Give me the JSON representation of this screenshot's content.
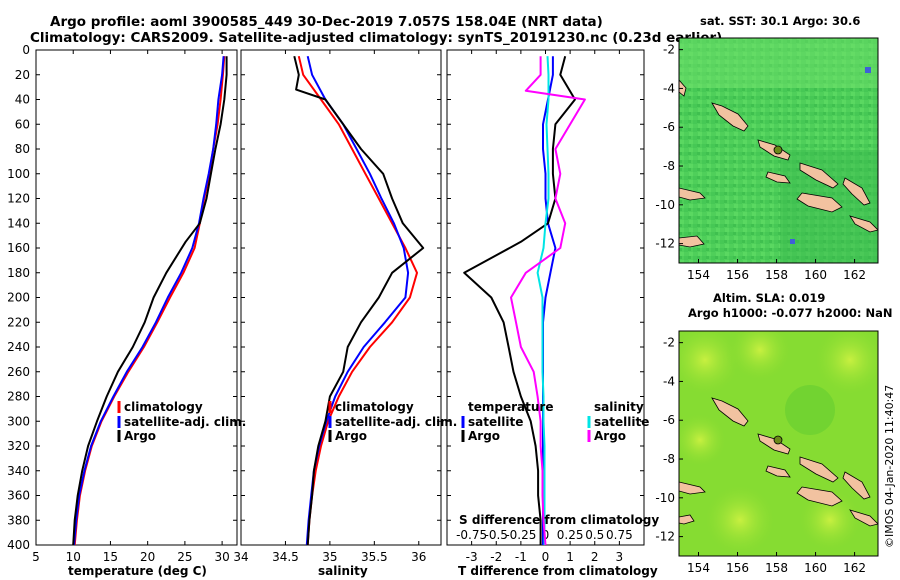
{
  "title_line1": "Argo profile: aoml 3900585_449 30-Dec-2019 7.057S 158.04E (NRT data)",
  "title_line2": "Climatology: CARS2009. Satellite-adjusted climatology: synTS_20191230.nc (0.23d earlier)",
  "credit": "©IMOS 04-Jan-2020 11:40:47",
  "colors": {
    "climatology": "#ff0000",
    "satellite": "#0000ff",
    "argo": "#000000",
    "sat_salinity": "#00e5e5",
    "argo_salinity": "#ff00ff"
  },
  "chart_data": [
    {
      "type": "line",
      "id": "temperature",
      "xlabel": "temperature (deg C)",
      "xlim": [
        5,
        32
      ],
      "ylim": [
        0,
        400
      ],
      "y_reversed": true,
      "x_ticks": [
        "5",
        "10",
        "15",
        "20",
        "25",
        "30"
      ],
      "y_ticks": [
        "0",
        "20",
        "40",
        "60",
        "80",
        "100",
        "120",
        "140",
        "160",
        "180",
        "200",
        "220",
        "240",
        "260",
        "280",
        "300",
        "320",
        "340",
        "360",
        "380",
        "400"
      ],
      "legend": [
        "climatology",
        "satellite-adj. clim.",
        "Argo"
      ],
      "series": [
        {
          "name": "climatology",
          "color": "#ff0000",
          "x": [
            30.3,
            30.1,
            29.8,
            29.4,
            28.8,
            28.3,
            27.6,
            27.0,
            26.3,
            24.8,
            23.0,
            21.3,
            19.5,
            17.4,
            15.5,
            13.8,
            12.5,
            11.6,
            10.9,
            10.5,
            10.2
          ],
          "y": [
            5,
            20,
            40,
            60,
            80,
            100,
            120,
            140,
            160,
            180,
            200,
            220,
            240,
            260,
            280,
            300,
            320,
            340,
            360,
            380,
            400
          ]
        },
        {
          "name": "satellite-adj. clim.",
          "color": "#0000ff",
          "x": [
            30.2,
            30.0,
            29.5,
            29.2,
            28.8,
            28.2,
            27.5,
            26.9,
            26.0,
            24.5,
            22.7,
            21.1,
            19.3,
            17.2,
            15.4,
            13.7,
            12.4,
            11.5,
            10.8,
            10.4,
            10.1
          ],
          "y": [
            5,
            20,
            40,
            60,
            80,
            100,
            120,
            140,
            160,
            180,
            200,
            220,
            240,
            260,
            280,
            300,
            320,
            340,
            360,
            380,
            400
          ]
        },
        {
          "name": "Argo",
          "color": "#000000",
          "x": [
            30.6,
            30.6,
            30.3,
            29.8,
            29.1,
            28.5,
            27.9,
            27.0,
            25.1,
            22.5,
            20.8,
            19.6,
            18.0,
            16.0,
            14.5,
            13.2,
            12.0,
            11.2,
            10.6,
            10.2,
            10.0
          ],
          "y": [
            5,
            20,
            40,
            60,
            80,
            100,
            120,
            140,
            155,
            180,
            200,
            220,
            240,
            260,
            280,
            300,
            320,
            340,
            360,
            380,
            400
          ]
        }
      ]
    },
    {
      "type": "line",
      "id": "salinity",
      "xlabel": "salinity",
      "xlim": [
        34,
        36.25
      ],
      "ylim": [
        0,
        400
      ],
      "y_reversed": true,
      "x_ticks": [
        "34",
        "34.5",
        "35",
        "35.5",
        "36"
      ],
      "legend": [
        "climatology",
        "satellite-adj. clim.",
        "Argo"
      ],
      "series": [
        {
          "name": "climatology",
          "color": "#ff0000",
          "x": [
            34.65,
            34.7,
            34.9,
            35.1,
            35.25,
            35.4,
            35.55,
            35.7,
            35.85,
            35.98,
            35.9,
            35.7,
            35.45,
            35.25,
            35.1,
            34.98,
            34.9,
            34.84,
            34.8,
            34.77,
            34.75
          ],
          "y": [
            5,
            20,
            40,
            60,
            80,
            100,
            120,
            140,
            160,
            180,
            200,
            220,
            240,
            260,
            280,
            300,
            320,
            340,
            360,
            380,
            400
          ]
        },
        {
          "name": "satellite-adj. clim.",
          "color": "#0000ff",
          "x": [
            34.75,
            34.8,
            34.95,
            35.15,
            35.3,
            35.45,
            35.58,
            35.72,
            35.83,
            35.88,
            35.85,
            35.62,
            35.38,
            35.2,
            35.06,
            34.96,
            34.88,
            34.82,
            34.79,
            34.76,
            34.74
          ],
          "y": [
            5,
            20,
            40,
            60,
            80,
            100,
            120,
            140,
            160,
            180,
            200,
            220,
            240,
            260,
            280,
            300,
            320,
            340,
            360,
            380,
            400
          ]
        },
        {
          "name": "Argo",
          "color": "#000000",
          "x": [
            34.6,
            34.65,
            34.62,
            34.95,
            35.35,
            35.6,
            35.7,
            35.82,
            36.05,
            35.7,
            35.55,
            35.35,
            35.2,
            35.15,
            35.0,
            34.95,
            34.87,
            34.82,
            34.8,
            34.77,
            34.75
          ],
          "y": [
            5,
            20,
            32,
            40,
            80,
            100,
            120,
            140,
            160,
            180,
            200,
            220,
            240,
            260,
            280,
            300,
            320,
            340,
            360,
            380,
            400
          ]
        }
      ]
    },
    {
      "type": "line",
      "id": "difference",
      "xlabel": "T difference from climatology",
      "top_xlabel": "S difference from climatology",
      "xlim": [
        -4,
        4
      ],
      "top_xlim": [
        -1,
        1
      ],
      "ylim": [
        0,
        400
      ],
      "y_reversed": true,
      "x_ticks": [
        "-3",
        "-2",
        "-1",
        "0",
        "1",
        "2",
        "3"
      ],
      "top_x_ticks": [
        "-0.75",
        "-0.5",
        "-0.25",
        "0",
        "0.25",
        "0.5",
        "0.75"
      ],
      "legend": [
        "temperature",
        "satellite",
        "Argo",
        "salinity",
        "satellite",
        "Argo"
      ],
      "series": [
        {
          "name": "T satellite",
          "color": "#0000ff",
          "axis": "T",
          "x": [
            0.3,
            0.3,
            0.1,
            -0.1,
            -0.1,
            0,
            0,
            0.1,
            0.4,
            0.2,
            0,
            -0.1,
            -0.1,
            -0.1,
            -0.1,
            -0.1,
            -0.1,
            -0.1,
            -0.1,
            -0.1,
            -0.1
          ],
          "y": [
            5,
            20,
            40,
            60,
            80,
            100,
            120,
            140,
            160,
            180,
            200,
            220,
            240,
            260,
            280,
            300,
            320,
            340,
            360,
            380,
            400
          ]
        },
        {
          "name": "T Argo",
          "color": "#000000",
          "axis": "T",
          "x": [
            0.8,
            0.6,
            1.2,
            0.4,
            0.3,
            0.3,
            0.4,
            0.1,
            -1.0,
            -3.3,
            -2.2,
            -1.7,
            -1.5,
            -1.3,
            -1.0,
            -0.6,
            -0.4,
            -0.3,
            -0.3,
            -0.2,
            -0.2
          ],
          "y": [
            5,
            20,
            40,
            60,
            80,
            100,
            120,
            140,
            155,
            180,
            200,
            220,
            240,
            260,
            280,
            300,
            320,
            340,
            360,
            380,
            400
          ]
        },
        {
          "name": "S satellite",
          "color": "#00e5e5",
          "axis": "S",
          "x": [
            0.02,
            0.03,
            0.03,
            0.01,
            0.02,
            0.03,
            0.03,
            0.0,
            -0.02,
            -0.08,
            -0.03,
            -0.03,
            -0.03,
            -0.03,
            -0.02,
            -0.02,
            -0.01,
            -0.01,
            -0.01,
            -0.01,
            -0.01
          ],
          "y": [
            5,
            20,
            40,
            60,
            80,
            100,
            120,
            140,
            160,
            180,
            200,
            220,
            240,
            260,
            280,
            300,
            320,
            340,
            360,
            380,
            400
          ]
        },
        {
          "name": "S Argo",
          "color": "#ff00ff",
          "axis": "S",
          "x": [
            -0.05,
            -0.05,
            -0.2,
            0.4,
            0.1,
            0.15,
            0.1,
            0.2,
            0.15,
            -0.2,
            -0.35,
            -0.3,
            -0.25,
            -0.12,
            -0.08,
            -0.05,
            -0.05,
            -0.03,
            -0.03,
            -0.02,
            0
          ],
          "y": [
            5,
            20,
            33,
            40,
            80,
            100,
            120,
            140,
            160,
            180,
            200,
            220,
            240,
            260,
            280,
            300,
            320,
            340,
            360,
            380,
            400
          ]
        }
      ]
    },
    {
      "type": "heatmap",
      "id": "sst_map",
      "title": "sat. SST: 30.1  Argo: 30.6",
      "xlim": [
        153,
        163.2
      ],
      "ylim": [
        -13,
        -1.4
      ],
      "x_ticks": [
        "154",
        "156",
        "158",
        "160",
        "162"
      ],
      "y_ticks": [
        "-2",
        "-4",
        "-6",
        "-8",
        "-10",
        "-12"
      ],
      "marker": {
        "lon": 158.04,
        "lat": -7.057
      }
    },
    {
      "type": "heatmap",
      "id": "sla_map",
      "title_line1": "Altim. SLA: 0.019",
      "title_line2": "Argo h1000: -0.077 h2000: NaN",
      "xlim": [
        153,
        163.2
      ],
      "ylim": [
        -13,
        -1.4
      ],
      "x_ticks": [
        "154",
        "156",
        "158",
        "160",
        "162"
      ],
      "y_ticks": [
        "-2",
        "-4",
        "-6",
        "-8",
        "-10",
        "-12"
      ],
      "marker": {
        "lon": 158.04,
        "lat": -7.057
      }
    }
  ]
}
